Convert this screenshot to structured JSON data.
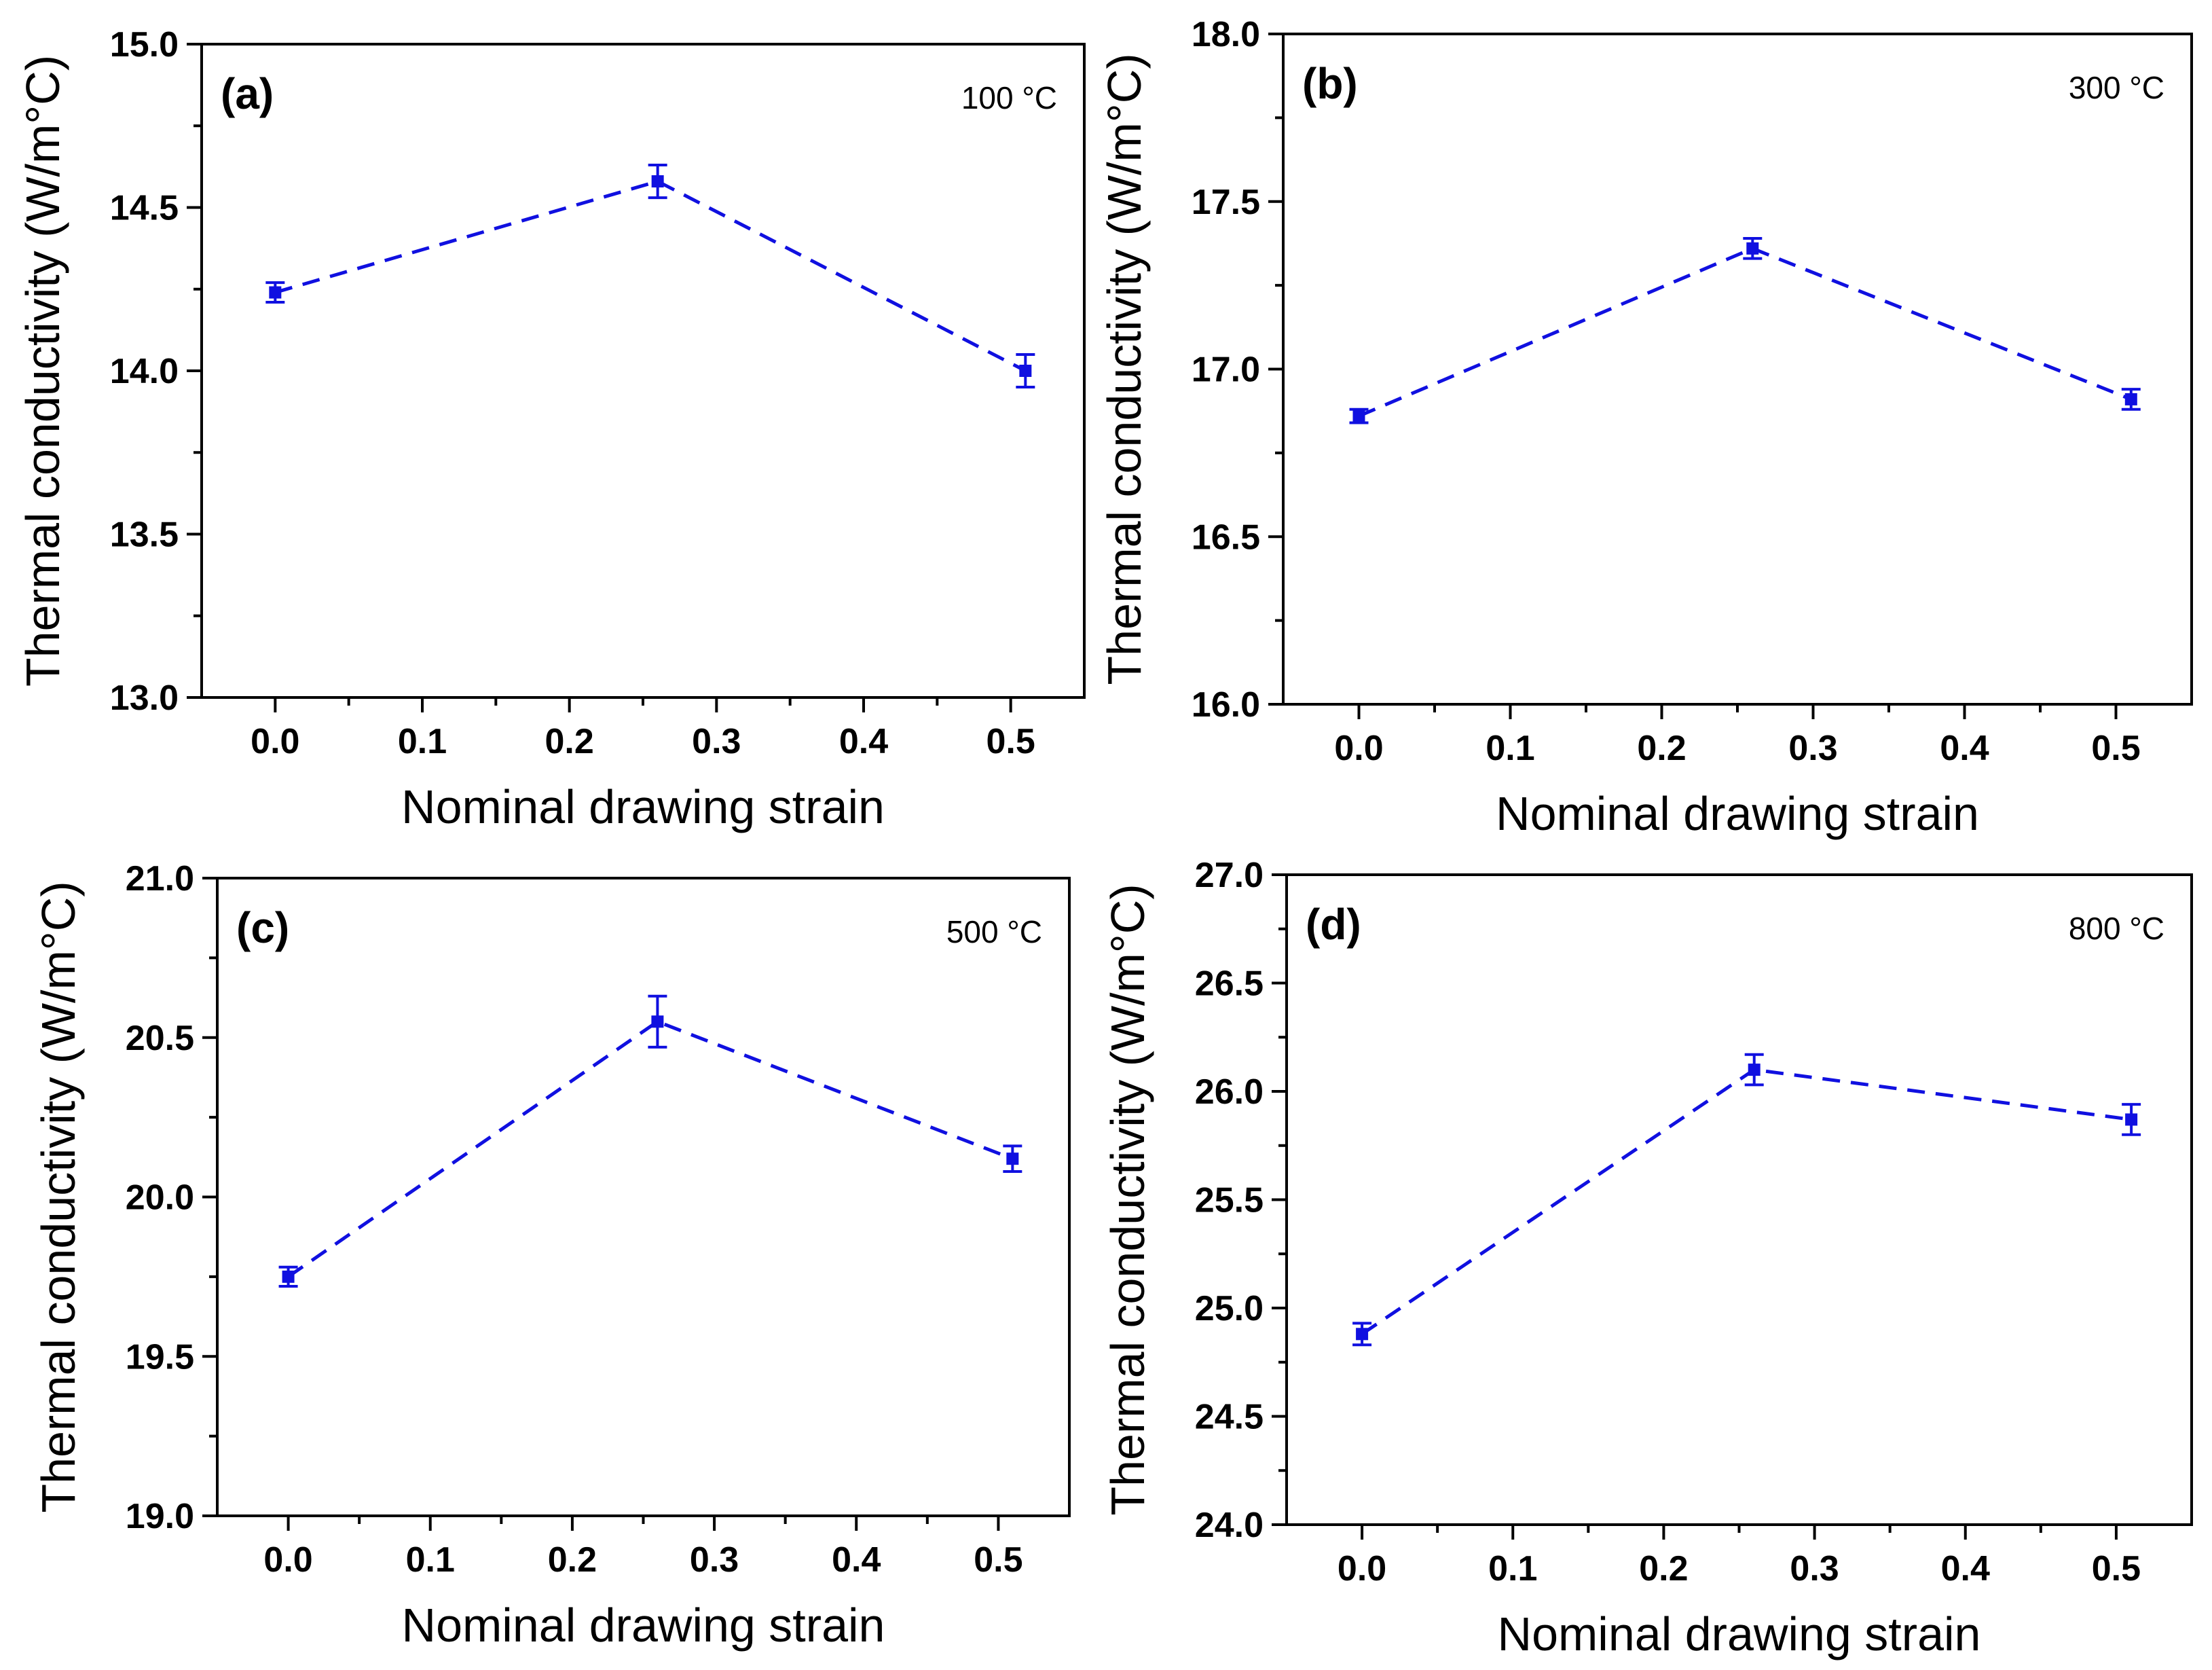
{
  "figure": {
    "x_title": "Nominal drawing strain",
    "y_title": "Thermal conductivity (W/m°C)"
  },
  "chart_data": [
    {
      "type": "line",
      "panel_label": "(a)",
      "temperature_label": "100 °C",
      "xlabel": "Nominal drawing strain",
      "ylabel": "Thermal conductivity (W/m°C)",
      "xlim": [
        -0.05,
        0.55
      ],
      "ylim": [
        13.0,
        15.0
      ],
      "x_ticks": [
        "0.0",
        "0.1",
        "0.2",
        "0.3",
        "0.4",
        "0.5"
      ],
      "y_ticks": [
        "13.0",
        "13.5",
        "14.0",
        "14.5",
        "15.0"
      ],
      "x": [
        0.0,
        0.26,
        0.51
      ],
      "values": [
        14.24,
        14.58,
        14.0
      ],
      "errors": [
        0.03,
        0.05,
        0.05
      ],
      "color": "#1010e0"
    },
    {
      "type": "line",
      "panel_label": "(b)",
      "temperature_label": "300 °C",
      "xlabel": "Nominal drawing strain",
      "ylabel": "Thermal conductivity (W/m°C)",
      "xlim": [
        -0.05,
        0.55
      ],
      "ylim": [
        16.0,
        18.0
      ],
      "x_ticks": [
        "0.0",
        "0.1",
        "0.2",
        "0.3",
        "0.4",
        "0.5"
      ],
      "y_ticks": [
        "16.0",
        "16.5",
        "17.0",
        "17.5",
        "18.0"
      ],
      "x": [
        0.0,
        0.26,
        0.51
      ],
      "values": [
        16.86,
        17.36,
        16.91
      ],
      "errors": [
        0.02,
        0.03,
        0.03
      ],
      "color": "#1010e0"
    },
    {
      "type": "line",
      "panel_label": "(c)",
      "temperature_label": "500 °C",
      "xlabel": "Nominal drawing strain",
      "ylabel": "Thermal conductivity (W/m°C)",
      "xlim": [
        -0.05,
        0.55
      ],
      "ylim": [
        19.0,
        21.0
      ],
      "x_ticks": [
        "0.0",
        "0.1",
        "0.2",
        "0.3",
        "0.4",
        "0.5"
      ],
      "y_ticks": [
        "19.0",
        "19.5",
        "20.0",
        "20.5",
        "21.0"
      ],
      "x": [
        0.0,
        0.26,
        0.51
      ],
      "values": [
        19.75,
        20.55,
        20.12
      ],
      "errors": [
        0.03,
        0.08,
        0.04
      ],
      "color": "#1010e0"
    },
    {
      "type": "line",
      "panel_label": "(d)",
      "temperature_label": "800 °C",
      "xlabel": "Nominal drawing strain",
      "ylabel": "Thermal conductivity (W/m°C)",
      "xlim": [
        -0.05,
        0.55
      ],
      "ylim": [
        24.0,
        27.0
      ],
      "x_ticks": [
        "0.0",
        "0.1",
        "0.2",
        "0.3",
        "0.4",
        "0.5"
      ],
      "y_ticks": [
        "24.0",
        "24.5",
        "25.0",
        "25.5",
        "26.0",
        "26.5",
        "27.0"
      ],
      "x": [
        0.0,
        0.26,
        0.51
      ],
      "values": [
        24.88,
        26.1,
        25.87
      ],
      "errors": [
        0.05,
        0.07,
        0.07
      ],
      "color": "#1010e0"
    }
  ]
}
